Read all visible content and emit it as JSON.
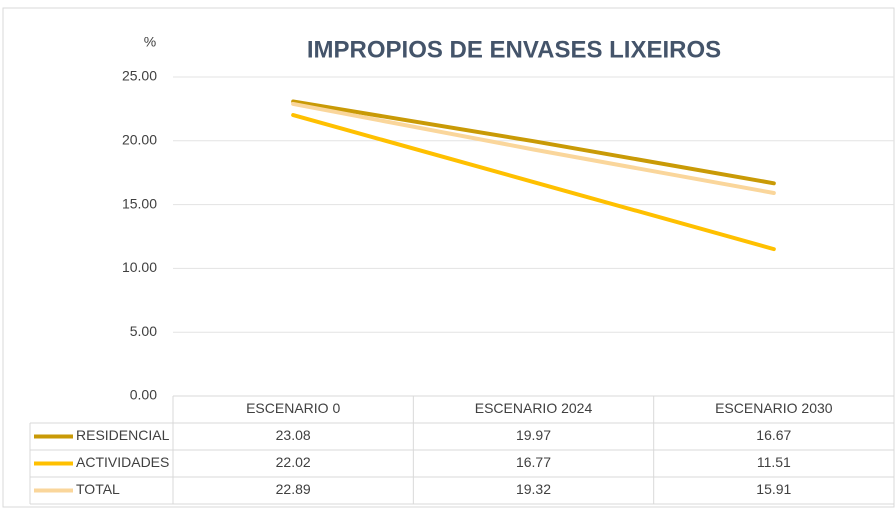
{
  "chart_data": {
    "type": "line",
    "title": "IMPROPIOS DE ENVASES LIXEIROS",
    "y_label": "%",
    "categories": [
      "ESCENARIO 0",
      "ESCENARIO 2024",
      "ESCENARIO 2030"
    ],
    "series": [
      {
        "name": "RESIDENCIAL",
        "color": "#c99a06",
        "values": [
          23.08,
          19.97,
          16.67
        ]
      },
      {
        "name": "ACTIVIDADES",
        "color": "#ffc000",
        "values": [
          22.02,
          16.77,
          11.51
        ]
      },
      {
        "name": "TOTAL",
        "color": "#fad69b",
        "values": [
          22.89,
          19.32,
          15.91
        ]
      }
    ],
    "ylim": [
      0,
      25
    ],
    "yticks": [
      {
        "value": 0,
        "label": "0.00"
      },
      {
        "value": 5,
        "label": "5.00"
      },
      {
        "value": 10,
        "label": "10.00"
      },
      {
        "value": 15,
        "label": "15.00"
      },
      {
        "value": 20,
        "label": "20.00"
      },
      {
        "value": 25,
        "label": "25.00"
      }
    ],
    "grid": true,
    "data_table": true
  }
}
